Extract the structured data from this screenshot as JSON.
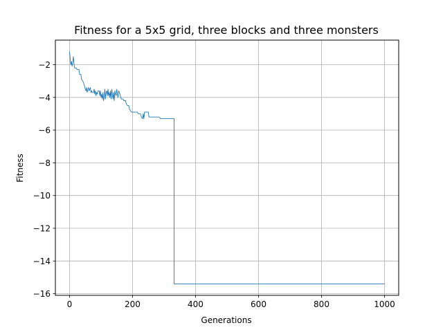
{
  "chart_data": {
    "type": "line",
    "title": "Fitness for a 5x5 grid, three blocks and three monsters",
    "xlabel": "Generations",
    "ylabel": "Fitness",
    "xlim": [
      -45,
      1045
    ],
    "ylim": [
      -16.1,
      -0.5
    ],
    "x_ticks": [
      0,
      200,
      400,
      600,
      800,
      1000
    ],
    "y_ticks": [
      -16,
      -14,
      -12,
      -10,
      -8,
      -6,
      -4,
      -2
    ],
    "grid": true,
    "line_color": "#1f77b4",
    "series": [
      {
        "points": [
          [
            0,
            -1.2
          ],
          [
            2,
            -1.6
          ],
          [
            4,
            -2.0
          ],
          [
            6,
            -1.8
          ],
          [
            8,
            -2.1
          ],
          [
            10,
            -1.9
          ],
          [
            12,
            -1.5
          ],
          [
            14,
            -1.9
          ],
          [
            16,
            -2.2
          ],
          [
            20,
            -2.2
          ],
          [
            24,
            -2.3
          ],
          [
            30,
            -2.3
          ],
          [
            32,
            -2.6
          ],
          [
            36,
            -2.6
          ],
          [
            38,
            -2.9
          ],
          [
            42,
            -3.0
          ],
          [
            46,
            -3.2
          ],
          [
            50,
            -3.5
          ],
          [
            52,
            -3.6
          ],
          [
            54,
            -3.4
          ],
          [
            56,
            -3.7
          ],
          [
            58,
            -3.5
          ],
          [
            60,
            -3.4
          ],
          [
            62,
            -3.6
          ],
          [
            64,
            -3.5
          ],
          [
            66,
            -3.4
          ],
          [
            68,
            -3.7
          ],
          [
            70,
            -3.6
          ],
          [
            72,
            -3.7
          ],
          [
            76,
            -3.7
          ],
          [
            78,
            -3.5
          ],
          [
            80,
            -3.8
          ],
          [
            82,
            -3.6
          ],
          [
            84,
            -3.9
          ],
          [
            86,
            -3.7
          ],
          [
            88,
            -3.8
          ],
          [
            90,
            -3.6
          ],
          [
            94,
            -3.6
          ],
          [
            96,
            -3.9
          ],
          [
            98,
            -3.6
          ],
          [
            100,
            -4.0
          ],
          [
            102,
            -3.8
          ],
          [
            104,
            -4.1
          ],
          [
            106,
            -3.7
          ],
          [
            108,
            -4.2
          ],
          [
            110,
            -4.0
          ],
          [
            112,
            -3.5
          ],
          [
            114,
            -4.1
          ],
          [
            116,
            -3.7
          ],
          [
            118,
            -3.6
          ],
          [
            120,
            -3.9
          ],
          [
            122,
            -3.5
          ],
          [
            124,
            -3.9
          ],
          [
            126,
            -3.7
          ],
          [
            128,
            -4.0
          ],
          [
            130,
            -3.6
          ],
          [
            132,
            -4.1
          ],
          [
            134,
            -3.5
          ],
          [
            136,
            -3.8
          ],
          [
            138,
            -4.1
          ],
          [
            140,
            -3.7
          ],
          [
            142,
            -4.2
          ],
          [
            144,
            -3.6
          ],
          [
            146,
            -3.8
          ],
          [
            148,
            -3.9
          ],
          [
            150,
            -3.5
          ],
          [
            152,
            -3.8
          ],
          [
            154,
            -4.0
          ],
          [
            156,
            -3.6
          ],
          [
            158,
            -3.7
          ],
          [
            160,
            -3.8
          ],
          [
            164,
            -4.1
          ],
          [
            170,
            -4.1
          ],
          [
            172,
            -4.2
          ],
          [
            178,
            -4.2
          ],
          [
            180,
            -4.4
          ],
          [
            184,
            -4.5
          ],
          [
            188,
            -4.5
          ],
          [
            190,
            -4.7
          ],
          [
            196,
            -4.9
          ],
          [
            200,
            -4.9
          ],
          [
            215,
            -4.9
          ],
          [
            218,
            -5.0
          ],
          [
            225,
            -5.0
          ],
          [
            228,
            -5.2
          ],
          [
            232,
            -5.3
          ],
          [
            234,
            -5.0
          ],
          [
            236,
            -5.3
          ],
          [
            238,
            -4.9
          ],
          [
            250,
            -4.9
          ],
          [
            252,
            -5.2
          ],
          [
            285,
            -5.2
          ],
          [
            288,
            -5.3
          ],
          [
            298,
            -5.3
          ],
          [
            318,
            -5.3
          ],
          [
            332,
            -5.3
          ],
          [
            332,
            -15.4
          ],
          [
            1000,
            -15.4
          ]
        ]
      }
    ]
  }
}
